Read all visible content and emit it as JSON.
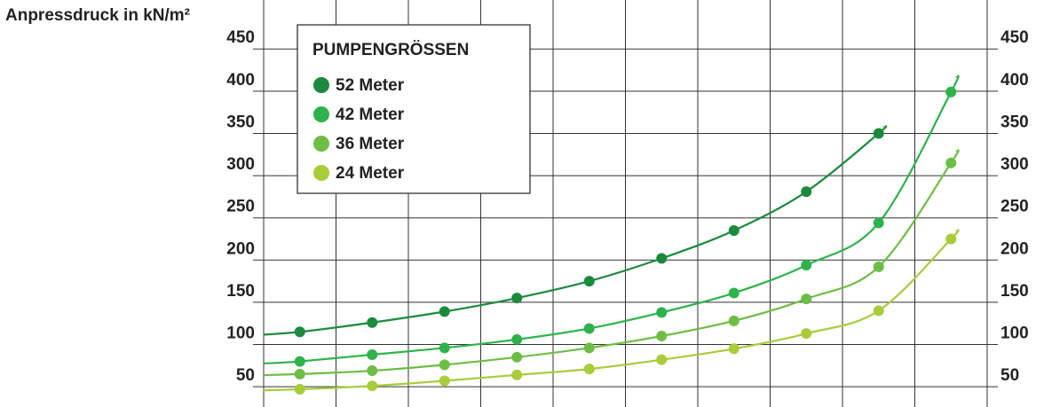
{
  "chart_data": {
    "type": "line",
    "y_axis_label": "Anpressdruck  in kN/m²",
    "legend_title": "PUMPENGRÖSSEN",
    "categories": [
      null,
      null,
      null,
      null,
      null,
      null,
      null,
      null,
      null,
      null
    ],
    "series": [
      {
        "name": "52 Meter",
        "color": "#1b8a3d",
        "values": [
          115,
          126,
          139,
          155,
          175,
          202,
          235,
          281,
          350,
          null
        ]
      },
      {
        "name": "42 Meter",
        "color": "#2eb24b",
        "values": [
          80,
          88,
          96,
          106,
          119,
          138,
          161,
          194,
          244,
          399
        ]
      },
      {
        "name": "36 Meter",
        "color": "#6dbd46",
        "values": [
          65,
          69,
          76,
          85,
          96,
          110,
          128,
          154,
          192,
          315
        ]
      },
      {
        "name": "24 Meter",
        "color": "#a8cc3a",
        "values": [
          47,
          51,
          57,
          64,
          71,
          82,
          95,
          113,
          140,
          225
        ]
      }
    ],
    "ylim": [
      26,
      508
    ],
    "yticks": [
      50,
      100,
      150,
      200,
      250,
      300,
      350,
      400,
      450
    ],
    "grid": true
  }
}
